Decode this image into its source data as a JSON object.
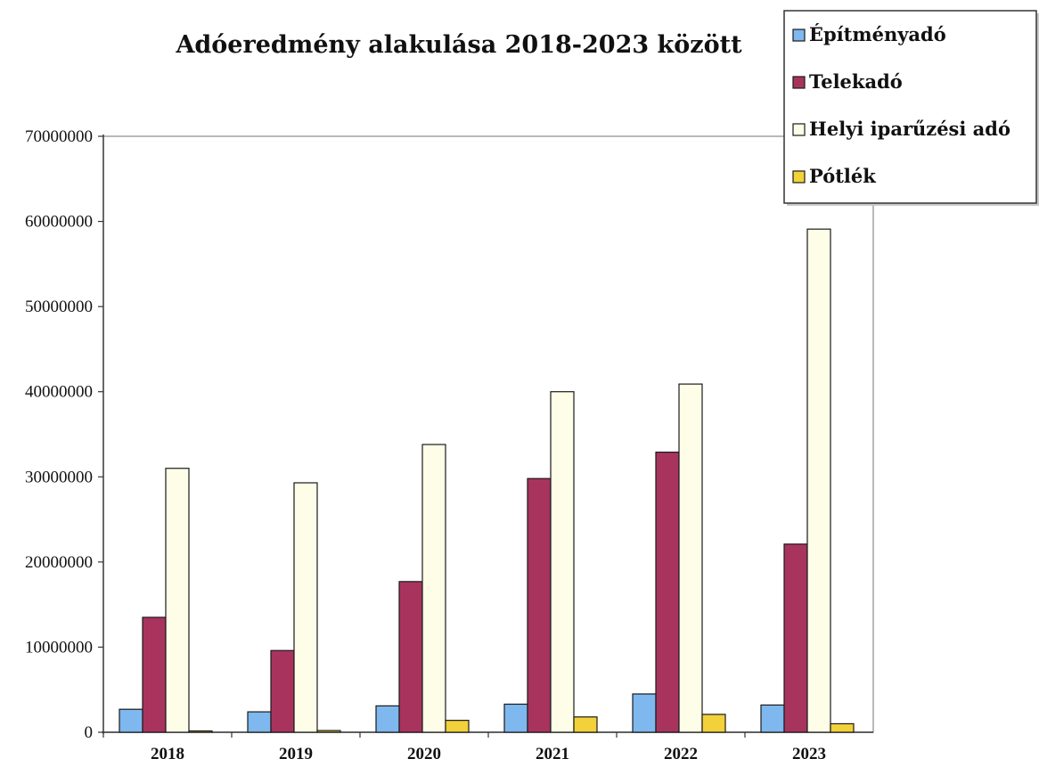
{
  "chart_data": {
    "type": "bar",
    "title": "Adóeredmény alakulása 2018-2023 között",
    "xlabel": "",
    "ylabel": "",
    "categories": [
      "2018",
      "2019",
      "2020",
      "2021",
      "2022",
      "2023"
    ],
    "ylim": [
      0,
      70000000
    ],
    "yticks": [
      0,
      10000000,
      20000000,
      30000000,
      40000000,
      50000000,
      60000000,
      70000000
    ],
    "ytick_labels": [
      "0",
      "10000000",
      "20000000",
      "30000000",
      "40000000",
      "50000000",
      "60000000",
      "70000000"
    ],
    "grid": false,
    "legend_position": "top-right",
    "series": [
      {
        "name": "Építményadó",
        "color": "#7eb8ee",
        "values": [
          2700000,
          2400000,
          3100000,
          3300000,
          4500000,
          3200000
        ]
      },
      {
        "name": "Telekadó",
        "color": "#a8345e",
        "values": [
          13500000,
          9600000,
          17700000,
          29800000,
          32900000,
          22100000
        ]
      },
      {
        "name": "Helyi iparűzési adó",
        "color": "#fdfde8",
        "values": [
          31000000,
          29300000,
          33800000,
          40000000,
          40900000,
          59100000
        ]
      },
      {
        "name": "Pótlék",
        "color": "#f2d13a",
        "values": [
          0,
          200000,
          1400000,
          1800000,
          2100000,
          1000000
        ]
      }
    ]
  }
}
